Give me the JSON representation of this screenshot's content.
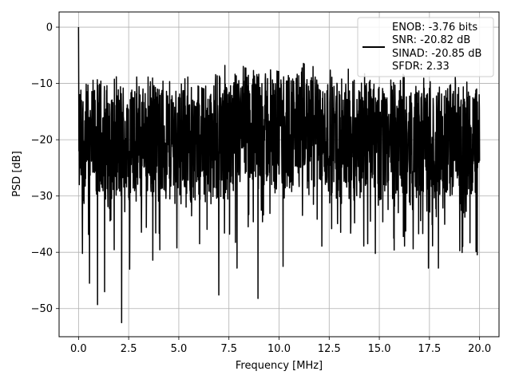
{
  "chart_data": {
    "type": "line",
    "title": "",
    "xlabel": "Frequency [MHz]",
    "ylabel": "PSD [dB]",
    "xlim": [
      -0.97,
      20.97
    ],
    "ylim": [
      -55,
      2.7
    ],
    "xticks": [
      0.0,
      2.5,
      5.0,
      7.5,
      10.0,
      12.5,
      15.0,
      17.5,
      20.0
    ],
    "xtick_labels": [
      "0.0",
      "2.5",
      "5.0",
      "7.5",
      "10.0",
      "12.5",
      "15.0",
      "17.5",
      "20.0"
    ],
    "yticks": [
      0,
      -10,
      -20,
      -30,
      -40,
      -50
    ],
    "ytick_labels": [
      "0",
      "−10",
      "−20",
      "−30",
      "−40",
      "−50"
    ],
    "grid": true,
    "legend_position": "top-right",
    "legend_lines": [
      "ENOB: -3.76 bits",
      "SNR: -20.82 dB",
      "SINAD: -20.85 dB",
      "SFDR: 2.33"
    ],
    "series": [
      {
        "color": "#000000",
        "x_range": [
          0,
          20
        ],
        "points": 2048,
        "start_value": 0,
        "typical_range": [
          -30,
          -10
        ],
        "notable_dips": [
          {
            "x": 0.2,
            "y": -40.2
          },
          {
            "x": 0.55,
            "y": -45.5
          },
          {
            "x": 0.95,
            "y": -49.3
          },
          {
            "x": 1.3,
            "y": -47.0
          },
          {
            "x": 2.15,
            "y": -52.5
          },
          {
            "x": 2.55,
            "y": -43.0
          },
          {
            "x": 3.7,
            "y": -41.4
          },
          {
            "x": 7.0,
            "y": -47.6
          },
          {
            "x": 7.9,
            "y": -42.8
          },
          {
            "x": 8.95,
            "y": -48.2
          },
          {
            "x": 10.2,
            "y": -42.5
          },
          {
            "x": 14.8,
            "y": -40.2
          },
          {
            "x": 17.45,
            "y": -42.8
          },
          {
            "x": 17.95,
            "y": -42.8
          }
        ],
        "notable_peaks": [
          {
            "x": 7.3,
            "y": -6.8
          },
          {
            "x": 9.9,
            "y": -7.8
          },
          {
            "x": 11.7,
            "y": -7.0
          }
        ]
      }
    ]
  }
}
